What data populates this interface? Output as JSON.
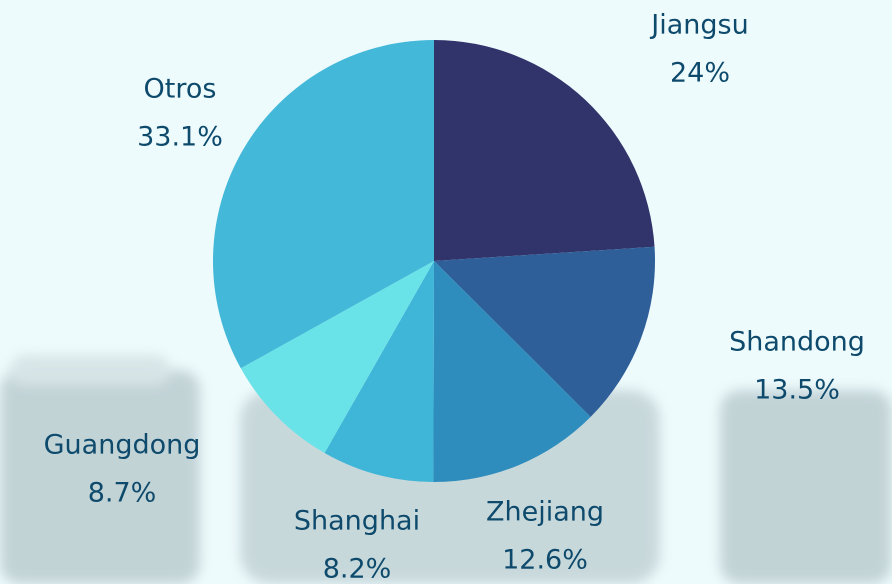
{
  "chart_data": {
    "type": "pie",
    "categories": [
      "Jiangsu",
      "Shandong",
      "Zhejiang",
      "Shanghai",
      "Guangdong",
      "Otros"
    ],
    "values": [
      24,
      13.5,
      12.6,
      8.2,
      8.7,
      33.1
    ],
    "value_labels": [
      "24%",
      "13.5%",
      "12.6%",
      "8.2%",
      "8.7%",
      "33.1%"
    ],
    "colors": [
      "#31346b",
      "#2e5f98",
      "#2e8dbd",
      "#3fb5d8",
      "#6ae3e8",
      "#43b8d9"
    ]
  }
}
